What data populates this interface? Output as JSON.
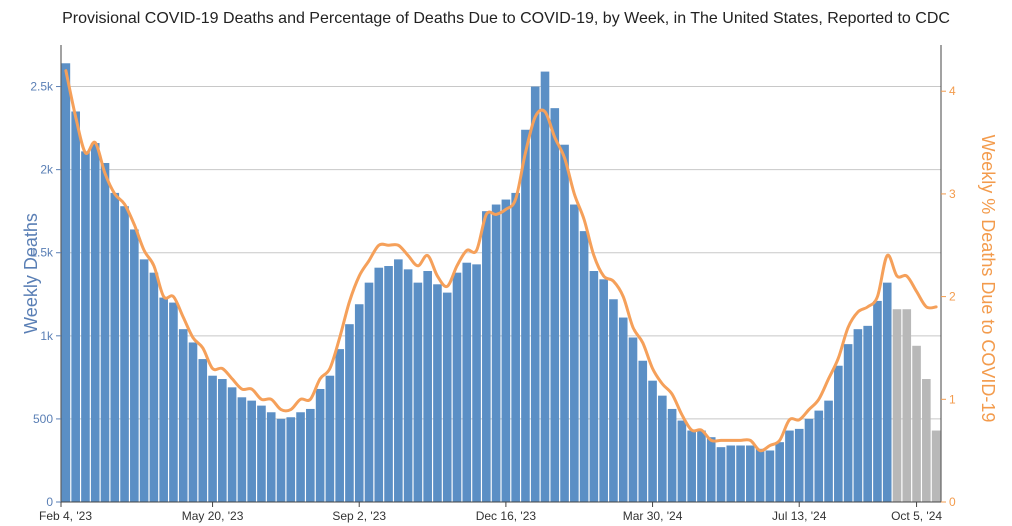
{
  "chart_data": {
    "type": "bar",
    "title": "Provisional COVID-19 Deaths and Percentage of Deaths Due to COVID-19, by Week, in The United States, Reported to CDC",
    "xlabel": "",
    "y_left_label": "Weekly Deaths",
    "y_right_label": "Weekly % Deaths Due to COVID-19",
    "ylim_left": [
      0,
      2750
    ],
    "ylim_right": [
      0,
      4.45
    ],
    "y_left_ticks": [
      0,
      500,
      1000,
      1500,
      2000,
      2500
    ],
    "y_left_tick_labels": [
      "0",
      "500",
      "1k",
      "1.5k",
      "2k",
      "2.5k"
    ],
    "y_right_ticks": [
      0,
      1,
      2,
      3,
      4
    ],
    "y_right_tick_labels": [
      "0",
      "1",
      "2",
      "3",
      "4"
    ],
    "x_tick_labels": [
      "Feb 4, '23",
      "May 20, '23",
      "Sep 2, '23",
      "Dec 16, '23",
      "Mar 30, '24",
      "Jul 13, '24",
      "Oct 5, '24"
    ],
    "x_tick_index": [
      0,
      15,
      30,
      45,
      60,
      75,
      87
    ],
    "grid": true,
    "colors": {
      "bars": "#5b8fc5",
      "incomplete_bars": "#b8b8b8",
      "line": "#f5a05a",
      "left_axis": "#5a7fb5",
      "right_axis": "#f39b4c",
      "grid": "#c8c8c8"
    },
    "first_incomplete_index": 85,
    "series": [
      {
        "name": "Weekly Deaths",
        "values": [
          2640,
          2350,
          2110,
          2160,
          2040,
          1860,
          1780,
          1640,
          1460,
          1380,
          1230,
          1200,
          1040,
          960,
          860,
          760,
          740,
          690,
          630,
          610,
          580,
          540,
          500,
          510,
          540,
          560,
          680,
          760,
          920,
          1070,
          1190,
          1320,
          1410,
          1420,
          1460,
          1400,
          1320,
          1390,
          1310,
          1260,
          1380,
          1440,
          1430,
          1750,
          1790,
          1820,
          1860,
          2240,
          2500,
          2590,
          2370,
          2150,
          1790,
          1630,
          1390,
          1340,
          1220,
          1110,
          990,
          850,
          730,
          640,
          560,
          490,
          430,
          430,
          390,
          330,
          340,
          340,
          340,
          320,
          310,
          360,
          430,
          440,
          500,
          550,
          610,
          820,
          950,
          1040,
          1060,
          1210,
          1320,
          1160,
          1160,
          940,
          740,
          430
        ]
      },
      {
        "name": "Weekly % Deaths Due to COVID-19",
        "values": [
          4.2,
          3.75,
          3.4,
          3.5,
          3.2,
          3.0,
          2.9,
          2.7,
          2.45,
          2.3,
          2.0,
          2.0,
          1.8,
          1.6,
          1.5,
          1.3,
          1.3,
          1.2,
          1.1,
          1.1,
          1.0,
          1.0,
          0.9,
          0.9,
          1.0,
          1.0,
          1.2,
          1.3,
          1.6,
          1.95,
          2.2,
          2.35,
          2.5,
          2.5,
          2.5,
          2.4,
          2.3,
          2.4,
          2.2,
          2.1,
          2.3,
          2.45,
          2.45,
          2.8,
          2.8,
          2.85,
          2.95,
          3.4,
          3.75,
          3.8,
          3.55,
          3.35,
          3.0,
          2.75,
          2.4,
          2.2,
          2.15,
          2.0,
          1.7,
          1.55,
          1.3,
          1.15,
          1.05,
          0.85,
          0.7,
          0.7,
          0.6,
          0.6,
          0.6,
          0.6,
          0.6,
          0.5,
          0.55,
          0.6,
          0.8,
          0.8,
          0.9,
          1.0,
          1.2,
          1.4,
          1.7,
          1.85,
          1.9,
          2.0,
          2.4,
          2.2,
          2.2,
          2.05,
          1.9,
          1.9
        ]
      }
    ]
  }
}
